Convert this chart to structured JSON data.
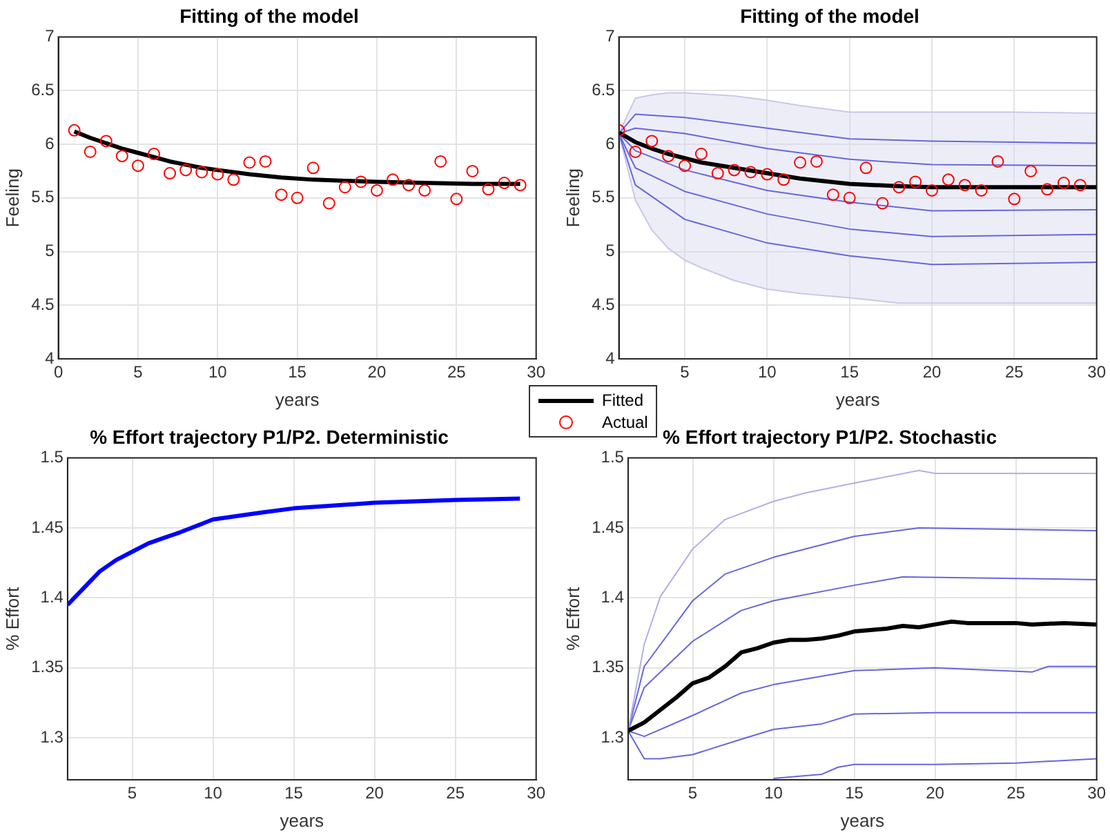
{
  "chart_data": [
    {
      "type": "line",
      "title": "Fitting of the model",
      "xlabel": "years",
      "ylabel": "Feeling",
      "xlim": [
        0,
        30
      ],
      "xticks": [
        0,
        5,
        10,
        15,
        20,
        25,
        30
      ],
      "ylim": [
        4,
        7
      ],
      "yticks": [
        4,
        4.5,
        5,
        5.5,
        6,
        6.5,
        7
      ],
      "grid": true,
      "legend": "bottom right",
      "marker": "none",
      "series": [
        {
          "name": "Fitted",
          "color": "#000000",
          "x": [
            1,
            2,
            3,
            4,
            5,
            6,
            7,
            8,
            9,
            10,
            12,
            14,
            16,
            18,
            20,
            23,
            26,
            29
          ],
          "values": [
            6.12,
            6.06,
            6.01,
            5.96,
            5.92,
            5.88,
            5.84,
            5.81,
            5.78,
            5.76,
            5.72,
            5.69,
            5.67,
            5.66,
            5.65,
            5.64,
            5.63,
            5.63
          ]
        },
        {
          "name": "Actual",
          "type": "scatter",
          "marker": "circle",
          "color": "#ff0000",
          "x": [
            1,
            2,
            3,
            4,
            5,
            6,
            7,
            8,
            9,
            10,
            11,
            12,
            13,
            14,
            15,
            16,
            17,
            18,
            19,
            20,
            21,
            22,
            23,
            24,
            25,
            26,
            27,
            28,
            29
          ],
          "values": [
            6.13,
            5.93,
            6.03,
            5.89,
            5.8,
            5.91,
            5.73,
            5.76,
            5.74,
            5.72,
            5.67,
            5.83,
            5.84,
            5.53,
            5.5,
            5.78,
            5.45,
            5.6,
            5.65,
            5.57,
            5.67,
            5.62,
            5.57,
            5.84,
            5.49,
            5.75,
            5.58,
            5.64,
            5.62
          ]
        }
      ]
    },
    {
      "type": "line",
      "title": "Fitting of the model",
      "xlabel": "years",
      "ylabel": "Feeling",
      "xlim": [
        1,
        30
      ],
      "xticks": [
        5,
        10,
        15,
        20,
        25,
        30
      ],
      "ylim": [
        4,
        7
      ],
      "yticks": [
        4,
        4.5,
        5,
        5.5,
        6,
        6.5,
        7
      ],
      "grid": true,
      "marker": "none",
      "series": [
        {
          "color": "#c8c8e8",
          "x": [
            1,
            2,
            3,
            4,
            5,
            6,
            8,
            10,
            12,
            15,
            18,
            20,
            25,
            30
          ],
          "values": [
            6.1,
            6.43,
            6.46,
            6.48,
            6.48,
            6.47,
            6.45,
            6.41,
            6.36,
            6.3,
            6.3,
            6.3,
            6.3,
            6.29
          ]
        },
        {
          "color": "#6666dd",
          "x": [
            1,
            2,
            5,
            10,
            15,
            20,
            30
          ],
          "values": [
            6.1,
            6.28,
            6.25,
            6.15,
            6.05,
            6.03,
            6.01
          ]
        },
        {
          "color": "#6666dd",
          "x": [
            1,
            2,
            5,
            10,
            15,
            20,
            30
          ],
          "values": [
            6.1,
            6.15,
            6.1,
            5.96,
            5.86,
            5.81,
            5.8
          ]
        },
        {
          "color": "#6666dd",
          "x": [
            1,
            2,
            5,
            10,
            15,
            20,
            30
          ],
          "values": [
            6.1,
            5.94,
            5.76,
            5.57,
            5.46,
            5.38,
            5.39
          ]
        },
        {
          "color": "#6666dd",
          "x": [
            1,
            2,
            5,
            10,
            15,
            20,
            30
          ],
          "values": [
            6.1,
            5.78,
            5.56,
            5.35,
            5.21,
            5.14,
            5.16
          ]
        },
        {
          "color": "#6666dd",
          "x": [
            1,
            2,
            5,
            10,
            15,
            20,
            30
          ],
          "values": [
            6.1,
            5.62,
            5.3,
            5.08,
            4.96,
            4.88,
            4.9
          ]
        },
        {
          "color": "#c8c8e8",
          "x": [
            1,
            2,
            3,
            4,
            5,
            6,
            8,
            10,
            12,
            15,
            18,
            20,
            25,
            30
          ],
          "values": [
            6.1,
            5.48,
            5.2,
            5.03,
            4.92,
            4.85,
            4.73,
            4.65,
            4.61,
            4.57,
            4.52,
            4.52,
            4.52,
            4.52
          ]
        },
        {
          "color": "#000000",
          "x": [
            1,
            2,
            3,
            4,
            5,
            6,
            8,
            10,
            12,
            15,
            18,
            20,
            25,
            30
          ],
          "values": [
            6.11,
            6.02,
            5.96,
            5.91,
            5.87,
            5.83,
            5.78,
            5.73,
            5.68,
            5.63,
            5.61,
            5.6,
            5.6,
            5.6
          ],
          "upper": [
            6.1,
            6.43,
            6.46,
            6.48,
            6.48,
            6.47,
            6.45,
            6.41,
            6.36,
            6.3,
            6.3,
            6.3,
            6.3,
            6.29
          ],
          "lower": [
            6.1,
            5.48,
            5.2,
            5.03,
            4.92,
            4.85,
            4.73,
            4.65,
            4.61,
            4.57,
            4.52,
            4.52,
            4.52,
            4.52
          ]
        },
        {
          "type": "scatter",
          "marker": "circle",
          "color": "#ff0000",
          "x": [
            1,
            2,
            3,
            4,
            5,
            6,
            7,
            8,
            9,
            10,
            11,
            12,
            13,
            14,
            15,
            16,
            17,
            18,
            19,
            20,
            21,
            22,
            23,
            24,
            25,
            26,
            27,
            28,
            29
          ],
          "values": [
            6.13,
            5.93,
            6.03,
            5.89,
            5.8,
            5.91,
            5.73,
            5.76,
            5.74,
            5.72,
            5.67,
            5.83,
            5.84,
            5.53,
            5.5,
            5.78,
            5.45,
            5.6,
            5.65,
            5.57,
            5.67,
            5.62,
            5.57,
            5.84,
            5.49,
            5.75,
            5.58,
            5.64,
            5.62
          ]
        }
      ]
    },
    {
      "type": "line",
      "title": "% Effort trajectory P1/P2. Deterministic",
      "xlabel": "years",
      "ylabel": "% Effort",
      "xlim": [
        1,
        30
      ],
      "xticks": [
        5,
        10,
        15,
        20,
        25,
        30
      ],
      "ylim": [
        1.27,
        1.5
      ],
      "yticks": [
        1.3,
        1.35,
        1.4,
        1.45,
        1.5
      ],
      "grid": true,
      "series": [
        {
          "color": "#0000ff",
          "x": [
            1,
            2,
            3,
            4,
            5,
            6,
            7,
            8,
            10,
            13,
            15,
            20,
            25,
            29
          ],
          "values": [
            1.395,
            1.407,
            1.419,
            1.427,
            1.433,
            1.439,
            1.443,
            1.447,
            1.456,
            1.461,
            1.464,
            1.468,
            1.47,
            1.471
          ]
        }
      ]
    },
    {
      "type": "line",
      "title": "% Effort trajectory P1/P2. Stochastic",
      "xlabel": "years",
      "ylabel": "% Effort",
      "xlim": [
        1,
        30
      ],
      "xticks": [
        5,
        10,
        15,
        20,
        25,
        30
      ],
      "ylim": [
        1.27,
        1.5
      ],
      "yticks": [
        1.3,
        1.35,
        1.4,
        1.45,
        1.5
      ],
      "grid": true,
      "series": [
        {
          "color": "#b0b0e6",
          "x": [
            1,
            2,
            3,
            5,
            7,
            10,
            12,
            15,
            19,
            20,
            30
          ],
          "values": [
            1.305,
            1.367,
            1.401,
            1.435,
            1.456,
            1.469,
            1.475,
            1.482,
            1.491,
            1.489,
            1.489
          ]
        },
        {
          "color": "#6666dd",
          "x": [
            1,
            2,
            5,
            7,
            10,
            15,
            19,
            30
          ],
          "values": [
            1.305,
            1.351,
            1.398,
            1.417,
            1.429,
            1.444,
            1.45,
            1.448
          ]
        },
        {
          "color": "#6666dd",
          "x": [
            1,
            2,
            5,
            8,
            10,
            15,
            18,
            30
          ],
          "values": [
            1.305,
            1.336,
            1.369,
            1.391,
            1.398,
            1.409,
            1.415,
            1.413
          ]
        },
        {
          "color": "#6666dd",
          "x": [
            1,
            2,
            5,
            8,
            10,
            15,
            20,
            26,
            27,
            30
          ],
          "values": [
            1.305,
            1.301,
            1.316,
            1.332,
            1.338,
            1.348,
            1.35,
            1.347,
            1.351,
            1.351
          ]
        },
        {
          "color": "#6666dd",
          "x": [
            1,
            2,
            3,
            5,
            8,
            10,
            13,
            15,
            20,
            30
          ],
          "values": [
            1.305,
            1.285,
            1.285,
            1.288,
            1.299,
            1.306,
            1.31,
            1.317,
            1.318,
            1.318
          ]
        },
        {
          "color": "#6666dd",
          "x": [
            10,
            12,
            13,
            14,
            15,
            20,
            25,
            30
          ],
          "values": [
            1.271,
            1.273,
            1.274,
            1.279,
            1.281,
            1.281,
            1.282,
            1.285
          ]
        },
        {
          "color": "#000000",
          "x": [
            1,
            2,
            3,
            4,
            5,
            6,
            7,
            8,
            9,
            10,
            11,
            12,
            13,
            14,
            15,
            16,
            17,
            18,
            19,
            20,
            21,
            22,
            25,
            26,
            28,
            30
          ],
          "values": [
            1.305,
            1.311,
            1.32,
            1.329,
            1.339,
            1.343,
            1.351,
            1.361,
            1.364,
            1.368,
            1.37,
            1.37,
            1.371,
            1.373,
            1.376,
            1.377,
            1.378,
            1.38,
            1.379,
            1.381,
            1.383,
            1.382,
            1.382,
            1.381,
            1.382,
            1.381
          ]
        }
      ]
    }
  ]
}
